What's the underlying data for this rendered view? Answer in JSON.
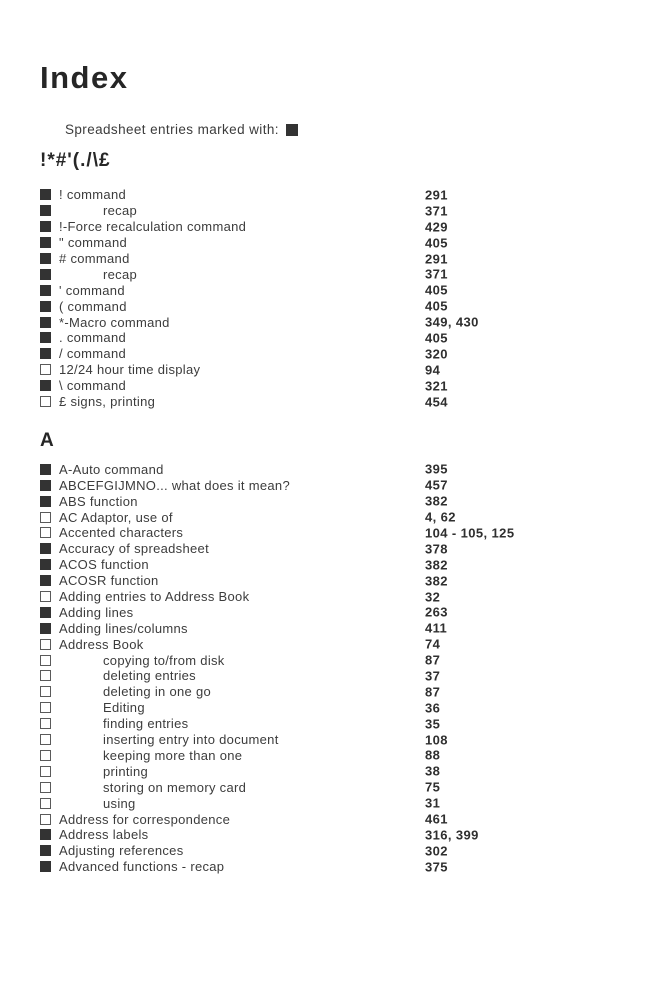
{
  "page": {
    "title": "Index",
    "legend_text": "Spreadsheet entries marked with:"
  },
  "colors": {
    "text": "#3c3c3c",
    "title": "#262626",
    "marker_fill": "#333333",
    "background": "#ffffff"
  },
  "markers": {
    "filled_meaning": "spreadsheet entry",
    "filled_icon": "filled-square-icon",
    "empty_icon": "empty-square-icon"
  },
  "sections": [
    {
      "header": "!*#'(./\\£",
      "entries": [
        {
          "marker": "filled",
          "sub": false,
          "label": "! command",
          "pages": "291"
        },
        {
          "marker": "filled",
          "sub": true,
          "label": "recap",
          "pages": "371"
        },
        {
          "marker": "filled",
          "sub": false,
          "label": "!-Force recalculation command",
          "pages": "429"
        },
        {
          "marker": "filled",
          "sub": false,
          "label": "\" command",
          "pages": "405"
        },
        {
          "marker": "filled",
          "sub": false,
          "label": "# command",
          "pages": "291"
        },
        {
          "marker": "filled",
          "sub": true,
          "label": "recap",
          "pages": "371"
        },
        {
          "marker": "filled",
          "sub": false,
          "label": "' command",
          "pages": "405"
        },
        {
          "marker": "filled",
          "sub": false,
          "label": "( command",
          "pages": "405"
        },
        {
          "marker": "filled",
          "sub": false,
          "label": "*-Macro command",
          "pages": "349, 430"
        },
        {
          "marker": "filled",
          "sub": false,
          "label": ". command",
          "pages": "405"
        },
        {
          "marker": "filled",
          "sub": false,
          "label": "/ command",
          "pages": "320"
        },
        {
          "marker": "empty",
          "sub": false,
          "label": "12/24 hour time display",
          "pages": "94"
        },
        {
          "marker": "filled",
          "sub": false,
          "label": "\\ command",
          "pages": "321"
        },
        {
          "marker": "empty",
          "sub": false,
          "label": "£ signs, printing",
          "pages": "454"
        }
      ]
    },
    {
      "header": "A",
      "entries": [
        {
          "marker": "filled",
          "sub": false,
          "label": "A-Auto command",
          "pages": "395"
        },
        {
          "marker": "filled",
          "sub": false,
          "label": "ABCEFGIJMNO... what does it mean?",
          "pages": "457"
        },
        {
          "marker": "filled",
          "sub": false,
          "label": "ABS function",
          "pages": "382"
        },
        {
          "marker": "empty",
          "sub": false,
          "label": "AC Adaptor, use of",
          "pages": "4, 62"
        },
        {
          "marker": "empty",
          "sub": false,
          "label": "Accented characters",
          "pages": "104 - 105, 125"
        },
        {
          "marker": "filled",
          "sub": false,
          "label": "Accuracy of spreadsheet",
          "pages": "378"
        },
        {
          "marker": "filled",
          "sub": false,
          "label": "ACOS function",
          "pages": "382"
        },
        {
          "marker": "filled",
          "sub": false,
          "label": "ACOSR function",
          "pages": "382"
        },
        {
          "marker": "empty",
          "sub": false,
          "label": "Adding entries to Address Book",
          "pages": "32"
        },
        {
          "marker": "filled",
          "sub": false,
          "label": "Adding lines",
          "pages": "263"
        },
        {
          "marker": "filled",
          "sub": false,
          "label": "Adding lines/columns",
          "pages": "411"
        },
        {
          "marker": "empty",
          "sub": false,
          "label": "Address Book",
          "pages": "74"
        },
        {
          "marker": "empty",
          "sub": true,
          "label": "copying to/from disk",
          "pages": "87"
        },
        {
          "marker": "empty",
          "sub": true,
          "label": "deleting entries",
          "pages": "37"
        },
        {
          "marker": "empty",
          "sub": true,
          "label": "deleting in one go",
          "pages": "87"
        },
        {
          "marker": "empty",
          "sub": true,
          "label": "Editing",
          "pages": "36"
        },
        {
          "marker": "empty",
          "sub": true,
          "label": "finding entries",
          "pages": "35"
        },
        {
          "marker": "empty",
          "sub": true,
          "label": "inserting entry into document",
          "pages": "108"
        },
        {
          "marker": "empty",
          "sub": true,
          "label": "keeping more than one",
          "pages": "88"
        },
        {
          "marker": "empty",
          "sub": true,
          "label": "printing",
          "pages": "38"
        },
        {
          "marker": "empty",
          "sub": true,
          "label": "storing on memory card",
          "pages": "75"
        },
        {
          "marker": "empty",
          "sub": true,
          "label": "using",
          "pages": "31"
        },
        {
          "marker": "empty",
          "sub": false,
          "label": "Address for correspondence",
          "pages": "461"
        },
        {
          "marker": "filled",
          "sub": false,
          "label": "Address labels",
          "pages": "316, 399"
        },
        {
          "marker": "filled",
          "sub": false,
          "label": "Adjusting references",
          "pages": "302"
        },
        {
          "marker": "filled",
          "sub": false,
          "label": "Advanced functions - recap",
          "pages": "375"
        }
      ]
    }
  ]
}
